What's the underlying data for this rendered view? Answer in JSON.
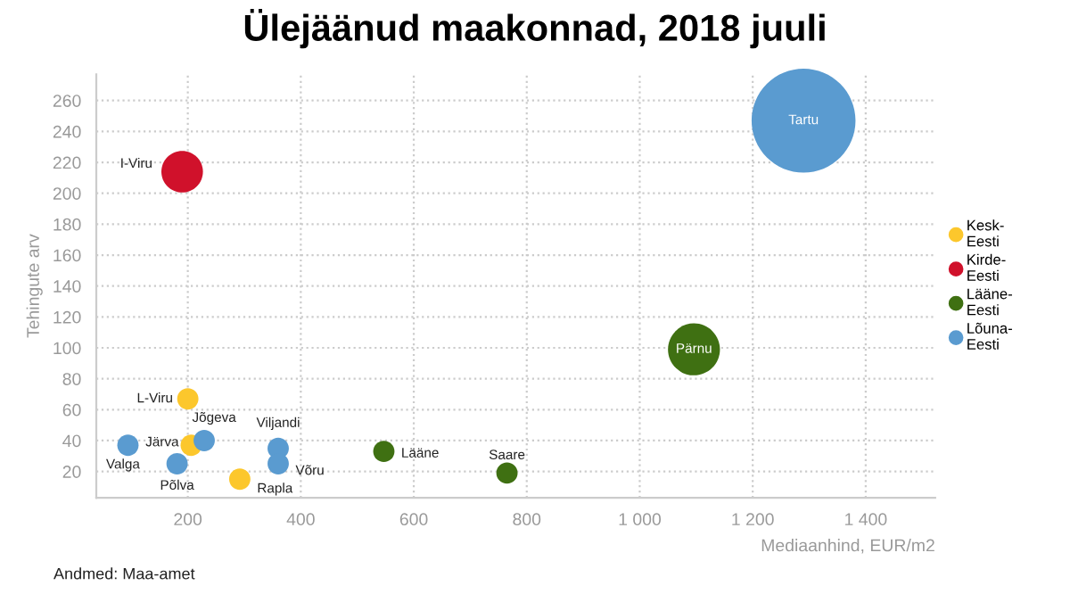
{
  "chart_data": {
    "type": "bubble",
    "title": "Ülejäänud maakonnad, 2018 juuli",
    "xlabel": "Mediaanhind, EUR/m2",
    "ylabel": "Tehingute arv",
    "xlim": [
      38,
      1523
    ],
    "ylim": [
      3,
      277
    ],
    "xticks": [
      200,
      400,
      600,
      800,
      {
        "value": 1000,
        "label": "1 000"
      },
      {
        "value": 1200,
        "label": "1 200"
      },
      {
        "value": 1400,
        "label": "1 400"
      }
    ],
    "yticks": [
      20,
      40,
      60,
      80,
      100,
      120,
      140,
      160,
      180,
      200,
      220,
      240,
      260
    ],
    "grid": true,
    "legend": "right",
    "marker": "circle",
    "series": [
      {
        "name": "Kesk-Eesti",
        "color": "#fcc72c",
        "x": [
          200,
          206,
          292
        ],
        "values": [
          67,
          37,
          15
        ],
        "sizes": [
          0.042,
          0.042,
          0.042
        ]
      },
      {
        "name": "Kirde-Eesti",
        "color": "#d0112b",
        "x": [
          190
        ],
        "values": [
          214
        ],
        "sizes": [
          0.16
        ]
      },
      {
        "name": "Lääne-Eesti",
        "color": "#3f7012",
        "x": [
          547,
          765,
          1096
        ],
        "values": [
          33,
          19,
          99
        ],
        "sizes": [
          0.042,
          0.042,
          0.25
        ]
      },
      {
        "name": "Lõuna-Eesti",
        "color": "#5a9bd0",
        "x": [
          1290,
          229,
          94,
          181,
          360,
          360
        ],
        "values": [
          247,
          40,
          37,
          25,
          35,
          25
        ],
        "sizes": [
          1,
          0.042,
          0.042,
          0.042,
          0.042,
          0.042
        ]
      }
    ],
    "annotations": [
      {
        "text": "L-Viru",
        "x": 200,
        "y": 67
      },
      {
        "text": "Järva",
        "x": 206,
        "y": 37
      },
      {
        "text": "Rapla",
        "x": 292,
        "y": 15
      },
      {
        "text": "I-Viru",
        "x": 190,
        "y": 214
      },
      {
        "text": "Lääne",
        "x": 547,
        "y": 33
      },
      {
        "text": "Saare",
        "x": 765,
        "y": 19
      },
      {
        "text": "Pärnu",
        "x": 1096,
        "y": 99
      },
      {
        "text": "Tartu",
        "x": 1290,
        "y": 247
      },
      {
        "text": "Jõgeva",
        "x": 229,
        "y": 40
      },
      {
        "text": "Valga",
        "x": 94,
        "y": 37
      },
      {
        "text": "Põlva",
        "x": 181,
        "y": 25
      },
      {
        "text": "Viljandi",
        "x": 360,
        "y": 35
      },
      {
        "text": "Võru",
        "x": 360,
        "y": 25
      },
      "Andmed: Maa-amet"
    ]
  }
}
